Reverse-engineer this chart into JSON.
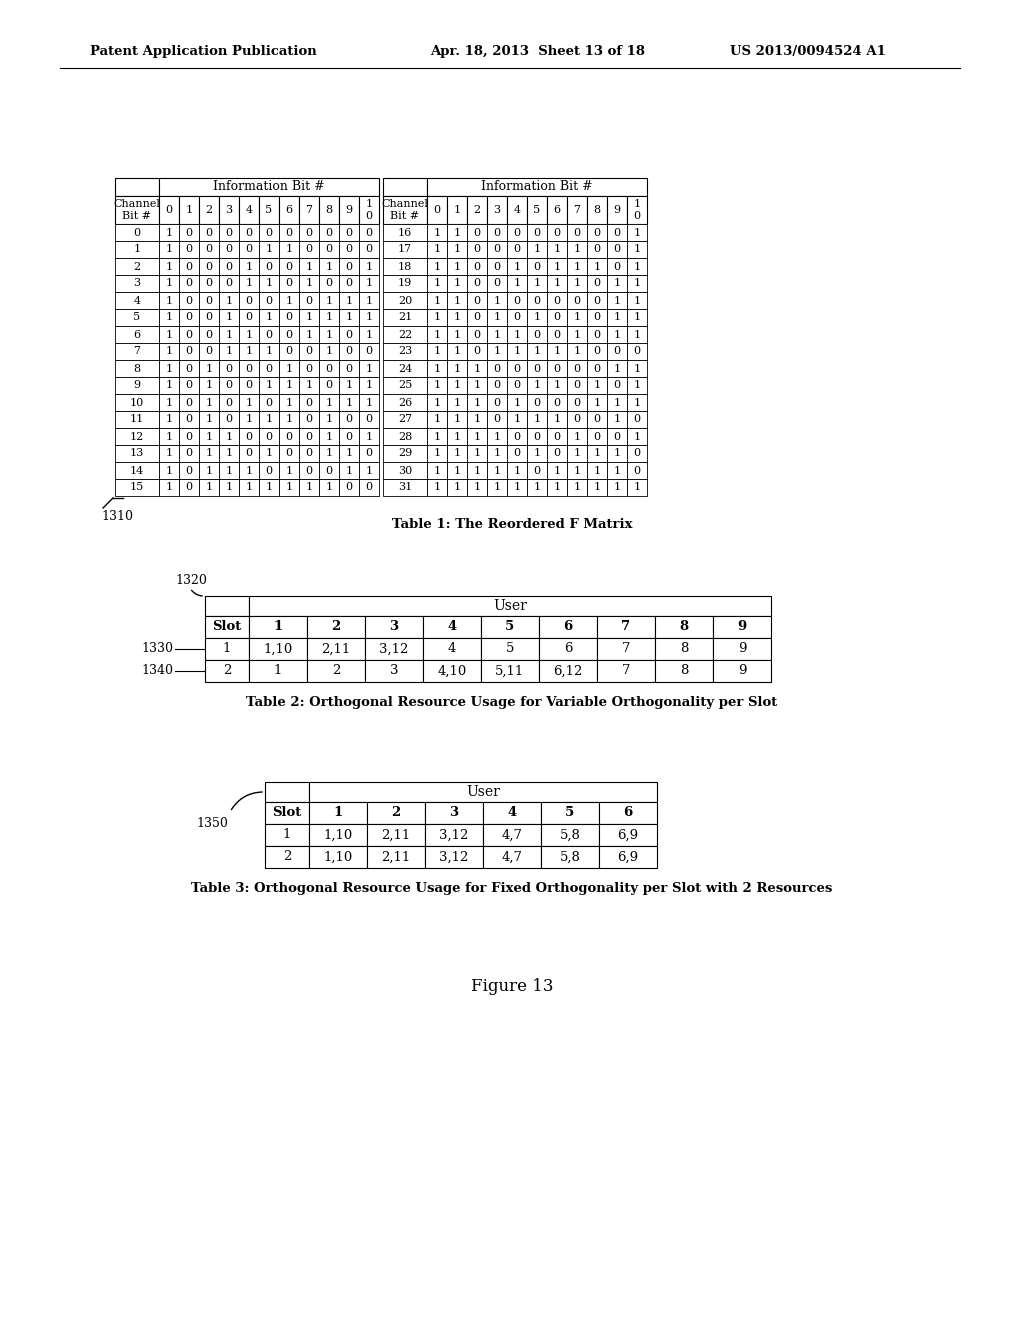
{
  "header_text_left": "Patent Application Publication",
  "header_text_mid": "Apr. 18, 2013  Sheet 13 of 18",
  "header_text_right": "US 2013/0094524 A1",
  "table1_title": "Table 1: The Reordered F Matrix",
  "table1_label": "1310",
  "table2_title": "Table 2: Orthogonal Resource Usage for Variable Orthogonality per Slot",
  "table2_label": "1320",
  "table2_row1_label": "1330",
  "table2_row2_label": "1340",
  "table3_title": "Table 3: Orthogonal Resource Usage for Fixed Orthogonality per Slot with 2 Resources",
  "table3_label": "1350",
  "figure_label": "Figure 13",
  "table1_rows_left": [
    [
      "0",
      "1",
      "0",
      "0",
      "0",
      "0",
      "0",
      "0",
      "0",
      "0",
      "0",
      "0"
    ],
    [
      "1",
      "1",
      "0",
      "0",
      "0",
      "0",
      "1",
      "1",
      "0",
      "0",
      "0",
      "0"
    ],
    [
      "2",
      "1",
      "0",
      "0",
      "0",
      "1",
      "0",
      "0",
      "1",
      "1",
      "0",
      "1"
    ],
    [
      "3",
      "1",
      "0",
      "0",
      "0",
      "1",
      "1",
      "0",
      "1",
      "0",
      "0",
      "1"
    ],
    [
      "4",
      "1",
      "0",
      "0",
      "1",
      "0",
      "0",
      "1",
      "0",
      "1",
      "1",
      "1"
    ],
    [
      "5",
      "1",
      "0",
      "0",
      "1",
      "0",
      "1",
      "0",
      "1",
      "1",
      "1",
      "1"
    ],
    [
      "6",
      "1",
      "0",
      "0",
      "1",
      "1",
      "0",
      "0",
      "1",
      "1",
      "0",
      "1"
    ],
    [
      "7",
      "1",
      "0",
      "0",
      "1",
      "1",
      "1",
      "0",
      "0",
      "1",
      "0",
      "0"
    ],
    [
      "8",
      "1",
      "0",
      "1",
      "0",
      "0",
      "0",
      "1",
      "0",
      "0",
      "0",
      "1"
    ],
    [
      "9",
      "1",
      "0",
      "1",
      "0",
      "0",
      "1",
      "1",
      "1",
      "0",
      "1",
      "1"
    ],
    [
      "10",
      "1",
      "0",
      "1",
      "0",
      "1",
      "0",
      "1",
      "0",
      "1",
      "1",
      "1"
    ],
    [
      "11",
      "1",
      "0",
      "1",
      "0",
      "1",
      "1",
      "1",
      "0",
      "1",
      "0",
      "0"
    ],
    [
      "12",
      "1",
      "0",
      "1",
      "1",
      "0",
      "0",
      "0",
      "0",
      "1",
      "0",
      "1"
    ],
    [
      "13",
      "1",
      "0",
      "1",
      "1",
      "0",
      "1",
      "0",
      "0",
      "1",
      "1",
      "0"
    ],
    [
      "14",
      "1",
      "0",
      "1",
      "1",
      "1",
      "0",
      "1",
      "0",
      "0",
      "1",
      "1"
    ],
    [
      "15",
      "1",
      "0",
      "1",
      "1",
      "1",
      "1",
      "1",
      "1",
      "1",
      "0",
      "0"
    ]
  ],
  "table1_rows_right": [
    [
      "16",
      "1",
      "1",
      "0",
      "0",
      "0",
      "0",
      "0",
      "0",
      "0",
      "0",
      "1"
    ],
    [
      "17",
      "1",
      "1",
      "0",
      "0",
      "0",
      "1",
      "1",
      "1",
      "0",
      "0",
      "1"
    ],
    [
      "18",
      "1",
      "1",
      "0",
      "0",
      "1",
      "0",
      "1",
      "1",
      "1",
      "0",
      "1"
    ],
    [
      "19",
      "1",
      "1",
      "0",
      "0",
      "1",
      "1",
      "1",
      "1",
      "0",
      "1",
      "1"
    ],
    [
      "20",
      "1",
      "1",
      "0",
      "1",
      "0",
      "0",
      "0",
      "0",
      "0",
      "1",
      "1"
    ],
    [
      "21",
      "1",
      "1",
      "0",
      "1",
      "0",
      "1",
      "0",
      "1",
      "0",
      "1",
      "1"
    ],
    [
      "22",
      "1",
      "1",
      "0",
      "1",
      "1",
      "0",
      "0",
      "1",
      "0",
      "1",
      "1"
    ],
    [
      "23",
      "1",
      "1",
      "0",
      "1",
      "1",
      "1",
      "1",
      "1",
      "0",
      "0",
      "0"
    ],
    [
      "24",
      "1",
      "1",
      "1",
      "0",
      "0",
      "0",
      "0",
      "0",
      "0",
      "1",
      "1"
    ],
    [
      "25",
      "1",
      "1",
      "1",
      "0",
      "0",
      "1",
      "1",
      "0",
      "1",
      "0",
      "1"
    ],
    [
      "26",
      "1",
      "1",
      "1",
      "0",
      "1",
      "0",
      "0",
      "0",
      "1",
      "1",
      "1"
    ],
    [
      "27",
      "1",
      "1",
      "1",
      "0",
      "1",
      "1",
      "1",
      "0",
      "0",
      "1",
      "0"
    ],
    [
      "28",
      "1",
      "1",
      "1",
      "1",
      "0",
      "0",
      "0",
      "1",
      "0",
      "0",
      "1"
    ],
    [
      "29",
      "1",
      "1",
      "1",
      "1",
      "0",
      "1",
      "0",
      "1",
      "1",
      "1",
      "0"
    ],
    [
      "30",
      "1",
      "1",
      "1",
      "1",
      "1",
      "0",
      "1",
      "1",
      "1",
      "1",
      "0"
    ],
    [
      "31",
      "1",
      "1",
      "1",
      "1",
      "1",
      "1",
      "1",
      "1",
      "1",
      "1",
      "1"
    ]
  ],
  "table2_col_headers": [
    "Slot",
    "1",
    "2",
    "3",
    "4",
    "5",
    "6",
    "7",
    "8",
    "9"
  ],
  "table2_rows": [
    [
      "1",
      "1,10",
      "2,11",
      "3,12",
      "4",
      "5",
      "6",
      "7",
      "8",
      "9"
    ],
    [
      "2",
      "1",
      "2",
      "3",
      "4,10",
      "5,11",
      "6,12",
      "7",
      "8",
      "9"
    ]
  ],
  "table3_col_headers": [
    "Slot",
    "1",
    "2",
    "3",
    "4",
    "5",
    "6"
  ],
  "table3_rows": [
    [
      "1",
      "1,10",
      "2,11",
      "3,12",
      "4,7",
      "5,8",
      "6,9"
    ],
    [
      "2",
      "1,10",
      "2,11",
      "3,12",
      "4,7",
      "5,8",
      "6,9"
    ]
  ]
}
